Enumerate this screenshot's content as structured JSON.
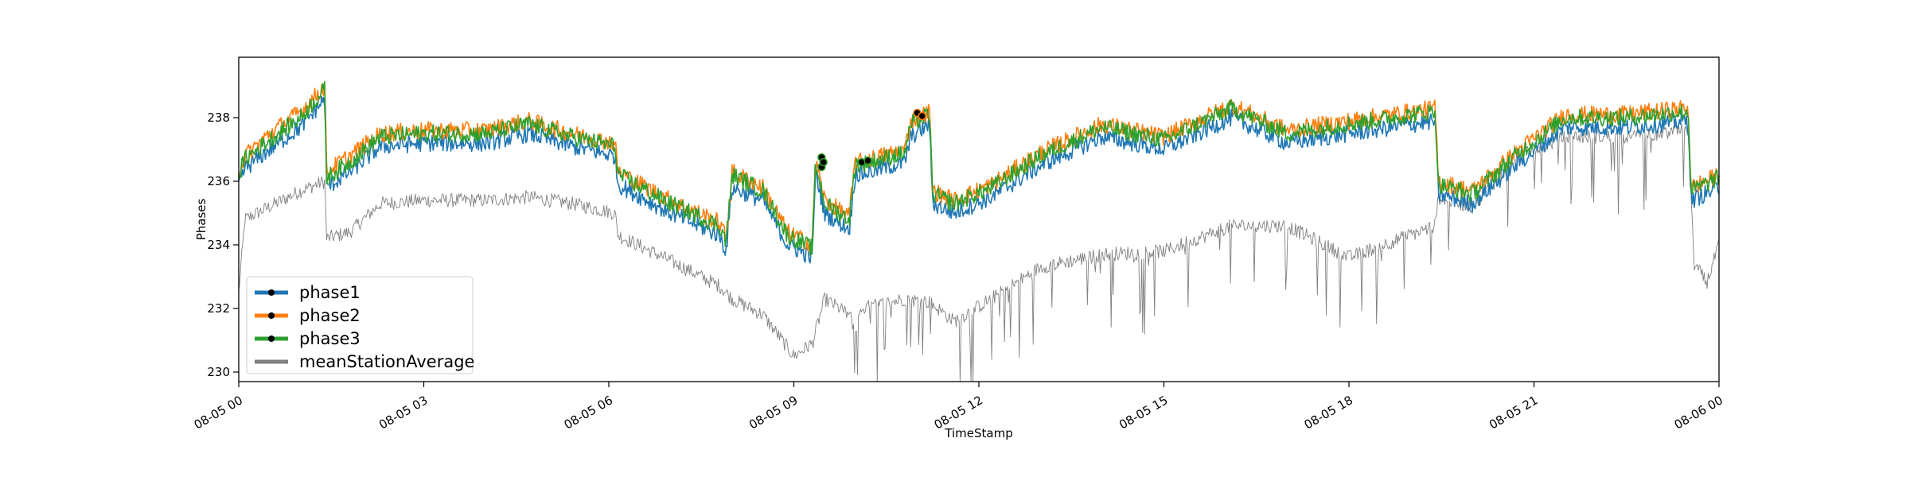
{
  "chart_data": {
    "type": "line",
    "xlabel": "TimeStamp",
    "ylabel": "Phases",
    "x_range": [
      "08-05 00",
      "08-06 00"
    ],
    "x_range_hours": [
      0,
      24
    ],
    "ylim": [
      229.7,
      239.9
    ],
    "x_ticks": [
      {
        "hour": 0,
        "label": "08-05 00"
      },
      {
        "hour": 3,
        "label": "08-05 03"
      },
      {
        "hour": 6,
        "label": "08-05 06"
      },
      {
        "hour": 9,
        "label": "08-05 09"
      },
      {
        "hour": 12,
        "label": "08-05 12"
      },
      {
        "hour": 15,
        "label": "08-05 15"
      },
      {
        "hour": 18,
        "label": "08-05 18"
      },
      {
        "hour": 21,
        "label": "08-05 21"
      },
      {
        "hour": 24,
        "label": "08-06 00"
      }
    ],
    "y_ticks": [
      230,
      232,
      234,
      236,
      238
    ],
    "legend_position": "lower-left",
    "grid": false,
    "series": [
      {
        "name": "phase1",
        "color": "#1f77b4",
        "offset": 0.0,
        "x": [
          0,
          0.1,
          0.5,
          1.0,
          1.4,
          1.42,
          1.8,
          2.3,
          3.0,
          4.0,
          4.7,
          5.4,
          6.1,
          6.15,
          7.0,
          7.8,
          7.9,
          8.0,
          8.5,
          8.9,
          9.3,
          9.35,
          9.5,
          9.9,
          10.0,
          10.05,
          10.8,
          10.9,
          11.2,
          11.25,
          11.6,
          12.2,
          13.0,
          14.0,
          15.0,
          16.1,
          17.0,
          18.0,
          19.4,
          19.45,
          20.0,
          20.7,
          21.5,
          22.5,
          23.5,
          23.55,
          24.0
        ],
        "values": [
          235.9,
          236.4,
          237.0,
          237.7,
          238.6,
          235.8,
          236.3,
          237.1,
          237.2,
          237.2,
          237.5,
          237.1,
          236.8,
          235.9,
          235.0,
          234.3,
          233.8,
          235.8,
          235.4,
          234.0,
          233.6,
          236.3,
          235.0,
          234.5,
          236.3,
          236.2,
          236.6,
          237.4,
          237.8,
          235.3,
          235.0,
          235.5,
          236.5,
          237.4,
          237.0,
          238.0,
          237.2,
          237.5,
          237.9,
          235.6,
          235.3,
          236.5,
          237.7,
          237.7,
          237.9,
          235.4,
          235.8
        ]
      },
      {
        "name": "phase2",
        "color": "#ff7f0e",
        "offset": 0.35,
        "x": [
          0,
          0.1,
          0.5,
          1.0,
          1.4,
          1.42,
          1.8,
          2.3,
          3.0,
          4.0,
          4.7,
          5.4,
          6.1,
          6.15,
          7.0,
          7.8,
          7.9,
          8.0,
          8.5,
          8.9,
          9.3,
          9.35,
          9.5,
          9.9,
          10.0,
          10.05,
          10.8,
          10.9,
          11.2,
          11.25,
          11.6,
          12.2,
          13.0,
          14.0,
          15.0,
          16.1,
          17.0,
          18.0,
          19.4,
          19.45,
          20.0,
          20.7,
          21.5,
          22.5,
          23.5,
          23.55,
          24.0
        ],
        "values": [
          236.3,
          236.8,
          237.5,
          238.2,
          239.0,
          236.3,
          236.8,
          237.5,
          237.6,
          237.6,
          237.9,
          237.5,
          237.2,
          236.3,
          235.4,
          234.7,
          234.2,
          236.3,
          235.8,
          234.4,
          234.0,
          236.7,
          235.4,
          234.9,
          236.7,
          236.6,
          237.0,
          237.9,
          238.2,
          235.7,
          235.4,
          235.9,
          236.9,
          237.8,
          237.4,
          238.4,
          237.6,
          237.9,
          238.3,
          236.0,
          235.7,
          236.9,
          238.1,
          238.1,
          238.3,
          235.8,
          236.2
        ]
      },
      {
        "name": "phase3",
        "color": "#2ca02c",
        "offset": 0.3,
        "x": [
          0,
          0.1,
          0.5,
          1.0,
          1.4,
          1.42,
          1.8,
          2.3,
          3.0,
          4.0,
          4.7,
          5.4,
          6.1,
          6.15,
          7.0,
          7.8,
          7.9,
          8.0,
          8.5,
          8.9,
          9.3,
          9.35,
          9.5,
          9.9,
          10.0,
          10.05,
          10.8,
          10.9,
          11.2,
          11.25,
          11.6,
          12.2,
          13.0,
          14.0,
          15.0,
          16.1,
          17.0,
          18.0,
          19.4,
          19.45,
          20.0,
          20.7,
          21.5,
          22.5,
          23.5,
          23.55,
          24.0
        ],
        "values": [
          236.2,
          236.7,
          237.3,
          238.0,
          238.9,
          236.1,
          236.6,
          237.4,
          237.5,
          237.5,
          237.8,
          237.4,
          237.1,
          236.2,
          235.3,
          234.6,
          234.1,
          236.2,
          235.7,
          234.3,
          233.9,
          236.6,
          235.3,
          234.8,
          236.6,
          236.5,
          236.9,
          237.8,
          238.1,
          235.6,
          235.3,
          235.8,
          236.8,
          237.7,
          237.3,
          238.3,
          237.5,
          237.8,
          238.2,
          235.9,
          235.6,
          236.8,
          238.0,
          238.0,
          238.2,
          235.7,
          236.1
        ]
      },
      {
        "name": "meanStationAverage",
        "color": "#808080",
        "offset": 0.0,
        "x": [
          0,
          0.1,
          0.5,
          1.0,
          1.4,
          1.42,
          1.8,
          2.3,
          3.0,
          4.0,
          4.7,
          5.4,
          6.1,
          6.15,
          7.0,
          7.8,
          8.0,
          8.5,
          9.0,
          9.3,
          9.5,
          9.9,
          10.0,
          10.1,
          10.8,
          11.2,
          11.6,
          12.2,
          13.0,
          14.0,
          15.0,
          16.1,
          17.0,
          18.0,
          19.4,
          19.45,
          20.0,
          20.7,
          21.5,
          22.5,
          23.5,
          23.6,
          23.8,
          24.0
        ],
        "values": [
          232.5,
          234.8,
          235.2,
          235.7,
          236.0,
          234.2,
          234.4,
          235.3,
          235.4,
          235.4,
          235.5,
          235.3,
          235.0,
          234.3,
          233.5,
          232.7,
          232.3,
          231.8,
          230.5,
          230.9,
          232.3,
          231.8,
          231.3,
          232.0,
          232.3,
          232.2,
          231.6,
          232.3,
          233.3,
          233.7,
          233.8,
          234.6,
          234.6,
          233.6,
          234.6,
          235.5,
          235.2,
          236.7,
          237.4,
          237.4,
          237.6,
          233.4,
          232.8,
          234.0
        ]
      }
    ],
    "markers": [
      {
        "hour": 9.45,
        "value": 236.75,
        "series": "phase3"
      },
      {
        "hour": 9.45,
        "value": 236.45,
        "series": "phase3"
      },
      {
        "hour": 9.48,
        "value": 236.6,
        "series": "phase3"
      },
      {
        "hour": 10.1,
        "value": 236.6,
        "series": "phase3"
      },
      {
        "hour": 10.2,
        "value": 236.65,
        "series": "phase3"
      },
      {
        "hour": 11.0,
        "value": 238.15,
        "series": "phase2"
      },
      {
        "hour": 11.08,
        "value": 238.05,
        "series": "phase2"
      }
    ]
  }
}
